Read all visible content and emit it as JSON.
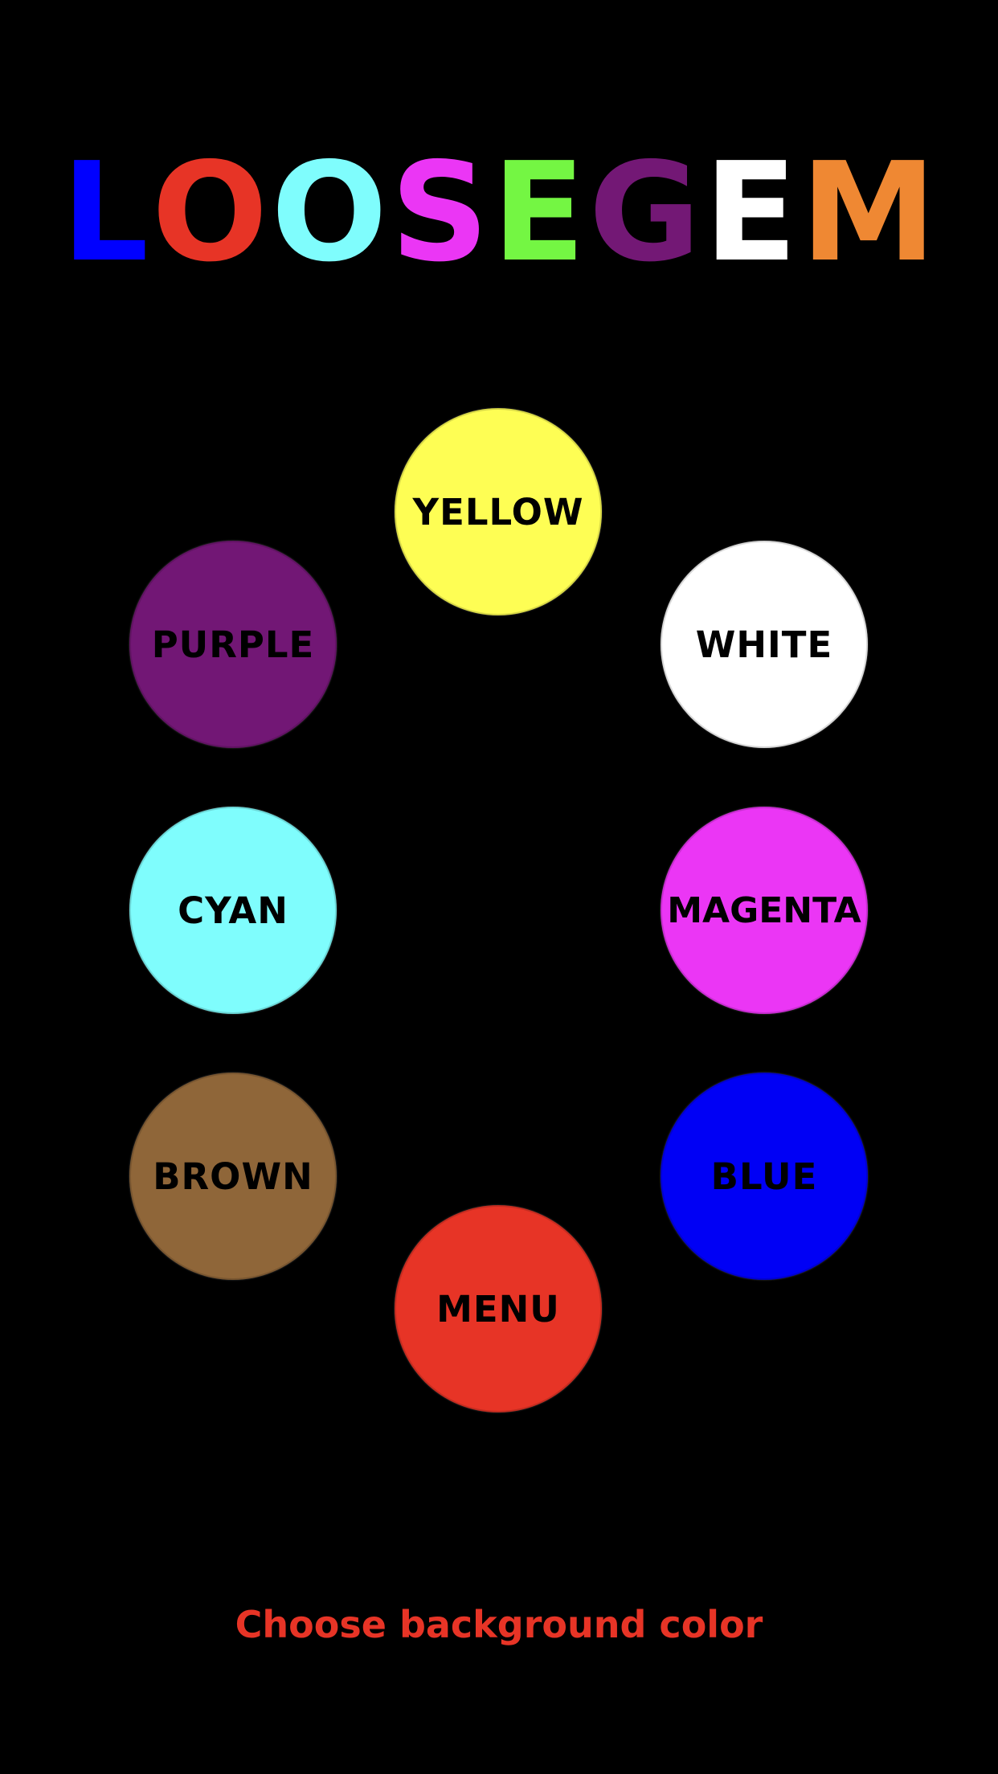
{
  "title": {
    "letters": [
      {
        "char": "L",
        "color": "#0000ff"
      },
      {
        "char": "O",
        "color": "#e73426"
      },
      {
        "char": "O",
        "color": "#7ffdfd"
      },
      {
        "char": "S",
        "color": "#eb36f5"
      },
      {
        "char": "E",
        "color": "#74f643"
      },
      {
        "char": "G",
        "color": "#731875"
      },
      {
        "char": "E",
        "color": "#ffffff"
      },
      {
        "char": "M",
        "color": "#ef8833"
      }
    ]
  },
  "buttons": {
    "yellow": {
      "label": "YELLOW",
      "color": "#fefe54"
    },
    "white": {
      "label": "WHITE",
      "color": "#ffffff"
    },
    "purple": {
      "label": "PURPLE",
      "color": "#721775"
    },
    "cyan": {
      "label": "CYAN",
      "color": "#7ffdfd"
    },
    "magenta": {
      "label": "MAGENTA",
      "color": "#eb36f5"
    },
    "brown": {
      "label": "BROWN",
      "color": "#8f6639"
    },
    "blue": {
      "label": "BLUE",
      "color": "#0000f5"
    },
    "menu": {
      "label": "MENU",
      "color": "#e73426"
    }
  },
  "instruction": {
    "text": "Choose background color",
    "color": "#e73426"
  }
}
